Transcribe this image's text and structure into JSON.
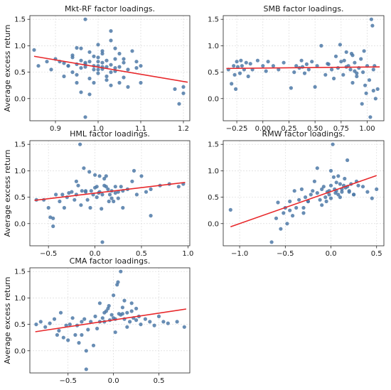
{
  "chart_data": [
    {
      "type": "scatter",
      "title": "Mkt-RF factor loadings.",
      "xlabel": "",
      "ylabel": "Average excess return",
      "xlim": [
        0.84,
        1.215
      ],
      "ylim": [
        -0.42,
        1.57
      ],
      "xticks": [
        0.9,
        1.0,
        1.1,
        1.2
      ],
      "xtick_labels": [
        "0.9",
        "1.0",
        "1.1",
        "1.2"
      ],
      "yticks": [
        0.0,
        0.5,
        1.0,
        1.5
      ],
      "ytick_labels": [
        "0.0",
        "0.5",
        "1.0",
        "1.5"
      ],
      "grid": true,
      "point_color": "#4e79a7",
      "line_color": "#e8282b",
      "fit_line": {
        "x": [
          0.85,
          1.21
        ],
        "y": [
          0.8,
          0.31
        ]
      },
      "x": [
        0.85,
        0.86,
        0.88,
        0.89,
        0.9,
        0.91,
        0.92,
        0.92,
        0.93,
        0.94,
        0.94,
        0.95,
        0.95,
        0.95,
        0.96,
        0.96,
        0.96,
        0.97,
        0.97,
        0.97,
        0.98,
        0.98,
        0.98,
        0.99,
        0.99,
        0.99,
        1.0,
        1.0,
        1.0,
        1.0,
        1.01,
        1.01,
        1.01,
        1.02,
        1.02,
        1.02,
        1.03,
        1.03,
        1.03,
        1.04,
        1.04,
        1.05,
        1.05,
        1.06,
        1.06,
        1.07,
        1.08,
        1.09,
        1.1,
        1.1,
        1.19,
        1.2,
        1.2,
        0.94,
        0.97,
        1.01,
        1.04,
        1.0,
        0.99,
        1.05,
        1.07,
        1.02,
        0.96,
        0.98,
        1.03,
        1.01,
        1.06,
        0.95,
        1.09,
        1.18,
        1.04,
        0.93,
        1.0,
        1.03,
        0.97
      ],
      "y": [
        0.92,
        0.62,
        0.7,
        0.55,
        0.75,
        0.7,
        0.42,
        0.67,
        0.62,
        0.78,
        0.5,
        0.96,
        0.65,
        0.45,
        0.72,
        0.58,
        0.12,
        1.5,
        0.68,
        0.6,
        0.88,
        0.7,
        0.38,
        0.8,
        0.55,
        0.3,
        1.02,
        0.78,
        0.62,
        0.48,
        0.9,
        0.68,
        0.56,
        0.72,
        0.6,
        0.42,
        1.28,
        0.64,
        0.5,
        0.95,
        0.58,
        0.85,
        0.6,
        0.75,
        0.4,
        0.55,
        0.9,
        0.58,
        0.62,
        0.3,
        -0.1,
        0.22,
        0.1,
        0.82,
        0.65,
        0.85,
        0.52,
        0.7,
        0.62,
        0.3,
        0.22,
        0.35,
        0.95,
        0.08,
        1.1,
        0.6,
        0.68,
        0.3,
        0.7,
        0.18,
        0.75,
        0.62,
        0.55,
        0.25,
        -0.35
      ]
    },
    {
      "type": "scatter",
      "title": "SMB factor loadings.",
      "xlabel": "",
      "ylabel": "",
      "xlim": [
        -0.38,
        1.16
      ],
      "ylim": [
        -0.42,
        1.57
      ],
      "xticks": [
        -0.25,
        0.0,
        0.25,
        0.5,
        0.75,
        1.0
      ],
      "xtick_labels": [
        "−0.25",
        "0.00",
        "0.25",
        "0.50",
        "0.75",
        "1.00"
      ],
      "yticks": [
        0.0,
        0.5,
        1.0,
        1.5
      ],
      "ytick_labels": [
        "0.0",
        "0.5",
        "1.0",
        "1.5"
      ],
      "grid": true,
      "point_color": "#4e79a7",
      "line_color": "#e8282b",
      "fit_line": {
        "x": [
          -0.35,
          1.12
        ],
        "y": [
          0.57,
          0.6
        ]
      },
      "x": [
        -0.33,
        -0.3,
        -0.28,
        -0.27,
        -0.25,
        -0.24,
        -0.22,
        -0.21,
        -0.2,
        -0.18,
        -0.16,
        -0.14,
        -0.12,
        -0.1,
        -0.05,
        0.0,
        0.03,
        0.05,
        0.1,
        0.15,
        0.2,
        0.27,
        0.3,
        0.32,
        0.35,
        0.37,
        0.4,
        0.42,
        0.44,
        0.47,
        0.52,
        0.56,
        0.6,
        0.63,
        0.66,
        0.7,
        0.72,
        0.75,
        0.77,
        0.8,
        0.82,
        0.84,
        0.86,
        0.88,
        0.9,
        0.92,
        0.94,
        0.96,
        0.98,
        1.0,
        1.02,
        1.04,
        1.06,
        1.08,
        1.1,
        0.74,
        0.86,
        0.97,
        1.05,
        0.8,
        0.9,
        0.68,
        0.5,
        0.78,
        0.95,
        1.03,
        1.07,
        0.62,
        0.88,
        -0.26,
        0.38,
        0.85,
        0.99,
        1.06
      ],
      "y": [
        0.55,
        0.28,
        0.62,
        0.45,
        0.7,
        0.6,
        0.48,
        0.72,
        0.62,
        0.55,
        0.68,
        0.42,
        0.66,
        0.55,
        0.72,
        0.62,
        0.52,
        0.7,
        0.62,
        0.55,
        0.68,
        0.2,
        0.5,
        0.62,
        0.58,
        0.72,
        0.48,
        0.65,
        0.55,
        0.7,
        0.62,
        1.0,
        0.45,
        0.65,
        0.55,
        0.8,
        0.58,
        0.7,
        0.45,
        0.88,
        0.62,
        0.55,
        0.3,
        0.68,
        0.42,
        0.58,
        0.75,
        0.5,
        0.25,
        0.62,
        0.35,
        1.5,
        0.15,
        0.0,
        0.18,
        1.02,
        0.82,
        0.9,
        1.38,
        0.6,
        0.48,
        0.38,
        0.22,
        0.72,
        -0.1,
        -0.35,
        0.62,
        0.66,
        0.52,
        0.18,
        0.6,
        0.85,
        0.1,
        0.55
      ]
    },
    {
      "type": "scatter",
      "title": "HML factor loadings.",
      "xlabel": "",
      "ylabel": "Average excess return",
      "xlim": [
        -0.7,
        1.02
      ],
      "ylim": [
        -0.42,
        1.57
      ],
      "xticks": [
        -0.5,
        0.0,
        0.5,
        1.0
      ],
      "xtick_labels": [
        "−0.5",
        "0.0",
        "0.5",
        "1.0"
      ],
      "yticks": [
        0.0,
        0.5,
        1.0,
        1.5
      ],
      "ytick_labels": [
        "0.0",
        "0.5",
        "1.0",
        "1.5"
      ],
      "grid": true,
      "point_color": "#4e79a7",
      "line_color": "#e8282b",
      "fit_line": {
        "x": [
          -0.65,
          0.97
        ],
        "y": [
          0.44,
          0.78
        ]
      },
      "x": [
        -0.63,
        -0.55,
        -0.5,
        -0.48,
        -0.45,
        -0.42,
        -0.38,
        -0.33,
        -0.3,
        -0.28,
        -0.25,
        -0.22,
        -0.2,
        -0.18,
        -0.16,
        -0.14,
        -0.12,
        -0.1,
        -0.08,
        -0.06,
        -0.04,
        -0.02,
        0.0,
        0.02,
        0.04,
        0.05,
        0.07,
        0.08,
        0.1,
        0.12,
        0.14,
        0.16,
        0.18,
        0.2,
        0.22,
        0.25,
        0.28,
        0.3,
        0.35,
        0.4,
        0.45,
        0.5,
        0.55,
        0.6,
        0.7,
        0.8,
        0.9,
        0.95,
        -0.05,
        0.1,
        0.15,
        -0.2,
        -0.15,
        0.25,
        0.0,
        0.05,
        0.12,
        0.3,
        -0.45,
        -0.35,
        0.08,
        0.18,
        0.22,
        -0.1,
        0.02,
        0.6,
        0.42
      ],
      "y": [
        0.45,
        0.45,
        0.3,
        0.12,
        -0.05,
        0.55,
        0.42,
        0.3,
        0.5,
        0.58,
        0.6,
        0.45,
        0.55,
        0.72,
        1.5,
        0.62,
        1.05,
        0.6,
        0.45,
        0.98,
        0.62,
        0.55,
        0.92,
        0.7,
        0.58,
        0.6,
        0.28,
        -0.35,
        0.85,
        0.9,
        0.65,
        0.55,
        0.62,
        0.42,
        0.58,
        0.48,
        0.7,
        0.3,
        0.65,
        0.8,
        0.55,
        0.9,
        0.6,
        0.65,
        0.72,
        0.75,
        0.7,
        0.75,
        0.3,
        0.72,
        0.42,
        0.8,
        0.35,
        0.6,
        0.68,
        0.9,
        0.7,
        0.62,
        0.1,
        0.55,
        0.55,
        0.48,
        0.7,
        0.62,
        0.5,
        0.15,
        1.0
      ]
    },
    {
      "type": "scatter",
      "title": "RMW factor loadings.",
      "xlabel": "",
      "ylabel": "",
      "xlim": [
        -1.18,
        0.58
      ],
      "ylim": [
        -0.42,
        1.57
      ],
      "xticks": [
        -1.0,
        -0.5,
        0.0,
        0.5
      ],
      "xtick_labels": [
        "−1.0",
        "−0.5",
        "0.0",
        "0.5"
      ],
      "yticks": [
        0.0,
        0.5,
        1.0,
        1.5
      ],
      "ytick_labels": [
        "0.0",
        "0.5",
        "1.0",
        "1.5"
      ],
      "grid": true,
      "point_color": "#4e79a7",
      "line_color": "#e8282b",
      "fit_line": {
        "x": [
          -1.1,
          0.5
        ],
        "y": [
          -0.06,
          0.91
        ]
      },
      "x": [
        -1.1,
        -0.65,
        -0.6,
        -0.58,
        -0.55,
        -0.52,
        -0.5,
        -0.48,
        -0.45,
        -0.42,
        -0.4,
        -0.38,
        -0.35,
        -0.32,
        -0.3,
        -0.28,
        -0.25,
        -0.22,
        -0.2,
        -0.18,
        -0.15,
        -0.12,
        -0.1,
        -0.08,
        -0.06,
        -0.04,
        -0.02,
        0.0,
        0.02,
        0.04,
        0.06,
        0.08,
        0.1,
        0.12,
        0.14,
        0.16,
        0.18,
        0.2,
        0.22,
        0.25,
        0.28,
        0.3,
        0.35,
        0.4,
        0.45,
        0.5,
        0.0,
        0.05,
        0.1,
        -0.05,
        0.15,
        0.2,
        -0.15,
        -0.25,
        0.0,
        0.08,
        0.12,
        0.18,
        -0.1,
        0.03,
        -0.02,
        0.25,
        0.06,
        -0.3,
        -0.45
      ],
      "y": [
        0.26,
        -0.35,
        0.1,
        0.4,
        -0.1,
        0.2,
        0.3,
        0.0,
        0.42,
        0.15,
        0.62,
        0.3,
        0.45,
        0.65,
        0.3,
        0.5,
        0.42,
        0.55,
        0.62,
        0.8,
        0.58,
        0.45,
        0.65,
        0.7,
        0.5,
        0.6,
        0.55,
        0.72,
        1.5,
        0.65,
        0.62,
        0.9,
        0.75,
        0.6,
        0.72,
        0.68,
        1.2,
        0.62,
        0.75,
        0.55,
        0.8,
        0.72,
        0.7,
        0.6,
        0.48,
        0.65,
        1.0,
        0.58,
        0.5,
        0.42,
        0.85,
        0.6,
        1.05,
        0.42,
        0.48,
        0.55,
        0.65,
        0.7,
        0.35,
        0.88,
        0.62,
        0.55,
        0.78,
        0.2,
        0.25
      ]
    },
    {
      "type": "scatter",
      "title": "CMA factor loadings.",
      "xlabel": "",
      "ylabel": "Average excess return",
      "xlim": [
        -0.92,
        0.84
      ],
      "ylim": [
        -0.42,
        1.57
      ],
      "xticks": [
        -0.5,
        0.0,
        0.5
      ],
      "xtick_labels": [
        "−0.5",
        "0.0",
        "0.5"
      ],
      "yticks": [
        0.0,
        0.5,
        1.0,
        1.5
      ],
      "ytick_labels": [
        "0.0",
        "0.5",
        "1.0",
        "1.5"
      ],
      "grid": true,
      "point_color": "#4e79a7",
      "line_color": "#e8282b",
      "fit_line": {
        "x": [
          -0.86,
          0.8
        ],
        "y": [
          0.36,
          0.79
        ]
      },
      "x": [
        -0.85,
        -0.8,
        -0.75,
        -0.7,
        -0.65,
        -0.62,
        -0.6,
        -0.58,
        -0.55,
        -0.52,
        -0.5,
        -0.48,
        -0.45,
        -0.42,
        -0.4,
        -0.38,
        -0.35,
        -0.32,
        -0.3,
        -0.28,
        -0.25,
        -0.22,
        -0.2,
        -0.18,
        -0.15,
        -0.12,
        -0.1,
        -0.08,
        -0.06,
        -0.04,
        -0.02,
        0.0,
        0.02,
        0.04,
        0.06,
        0.08,
        0.1,
        0.12,
        0.15,
        0.18,
        0.2,
        0.22,
        0.25,
        0.28,
        0.3,
        0.35,
        0.4,
        0.45,
        0.5,
        0.55,
        0.6,
        0.7,
        0.78,
        0.05,
        0.1,
        -0.05,
        0.0,
        0.15,
        -0.15,
        0.08,
        -0.3,
        -0.35,
        0.12,
        0.2,
        0.02,
        -0.1,
        0.25
      ],
      "y": [
        0.5,
        0.55,
        0.45,
        0.52,
        0.6,
        0.3,
        0.38,
        0.72,
        0.25,
        0.48,
        0.2,
        0.5,
        0.62,
        0.3,
        0.48,
        0.15,
        0.55,
        0.6,
        -0.35,
        0.4,
        0.55,
        0.1,
        0.65,
        0.42,
        0.9,
        0.62,
        0.55,
        0.75,
        0.8,
        0.58,
        0.68,
        1.05,
        0.6,
        1.25,
        0.7,
        1.5,
        0.82,
        0.6,
        0.72,
        0.55,
        0.9,
        0.62,
        0.58,
        0.65,
        0.5,
        0.6,
        0.55,
        0.48,
        0.65,
        0.55,
        0.52,
        0.55,
        0.45,
        1.3,
        0.7,
        0.85,
        0.62,
        0.45,
        0.55,
        0.68,
        0.0,
        0.3,
        0.95,
        0.75,
        0.35,
        0.72,
        0.8
      ]
    }
  ]
}
